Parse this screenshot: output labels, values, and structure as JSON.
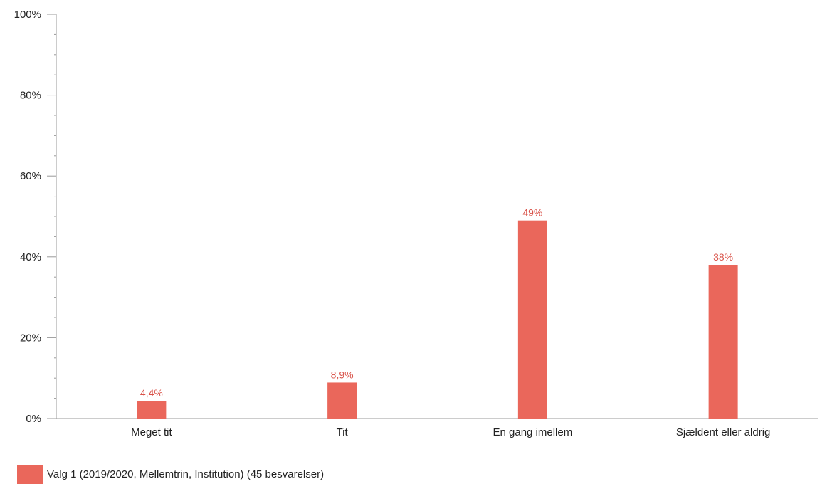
{
  "chart_data": {
    "type": "bar",
    "categories": [
      "Meget tit",
      "Tit",
      "En gang imellem",
      "Sjældent eller aldrig"
    ],
    "series": [
      {
        "name": "Valg 1 (2019/2020, Mellemtrin, Institution) (45 besvarelser)",
        "values": [
          4.4,
          8.9,
          49,
          38
        ],
        "value_labels": [
          "4,4%",
          "8,9%",
          "49%",
          "38%"
        ]
      }
    ],
    "y_ticks": [
      0,
      20,
      40,
      60,
      80,
      100
    ],
    "y_tick_labels": [
      "0%",
      "20%",
      "40%",
      "60%",
      "80%",
      "100%"
    ],
    "ylim": [
      0,
      100
    ],
    "grid": false,
    "legend_position": "bottom-left",
    "colors": {
      "bar": "#ea675b",
      "label": "#d9534a",
      "axis": "#999999",
      "text": "#222222"
    }
  }
}
